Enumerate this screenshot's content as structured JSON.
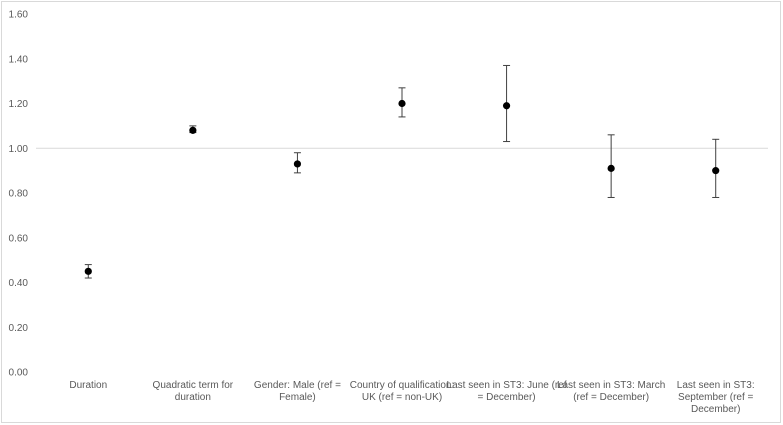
{
  "chart_data": {
    "type": "scatter",
    "title": "",
    "xlabel": "",
    "ylabel": "",
    "ylim": [
      0,
      1.6
    ],
    "yticks": [
      "0.00",
      "0.20",
      "0.40",
      "0.60",
      "0.80",
      "1.00",
      "1.20",
      "1.40",
      "1.60"
    ],
    "reference_line": 1.0,
    "grid": false,
    "legend": "none",
    "marker_color": "#000000",
    "error_bar_color": "#404040",
    "reference_line_color": "#d9d9d9",
    "points": [
      {
        "category": [
          "Duration"
        ],
        "value": 0.45,
        "lower": 0.42,
        "upper": 0.48
      },
      {
        "category": [
          "Quadratic term for",
          "duration"
        ],
        "value": 1.08,
        "lower": 1.07,
        "upper": 1.1
      },
      {
        "category": [
          "Gender: Male (ref =",
          "Female)"
        ],
        "value": 0.93,
        "lower": 0.89,
        "upper": 0.98
      },
      {
        "category": [
          "Country of qualification:",
          "UK (ref = non-UK)"
        ],
        "value": 1.2,
        "lower": 1.14,
        "upper": 1.27
      },
      {
        "category": [
          "Last seen in ST3: June (ref",
          "= December)"
        ],
        "value": 1.19,
        "lower": 1.03,
        "upper": 1.37
      },
      {
        "category": [
          "Last seen in ST3: March",
          "(ref = December)"
        ],
        "value": 0.91,
        "lower": 0.78,
        "upper": 1.06
      },
      {
        "category": [
          "Last seen in ST3:",
          "September (ref =",
          "December)"
        ],
        "value": 0.9,
        "lower": 0.78,
        "upper": 1.04
      }
    ]
  }
}
